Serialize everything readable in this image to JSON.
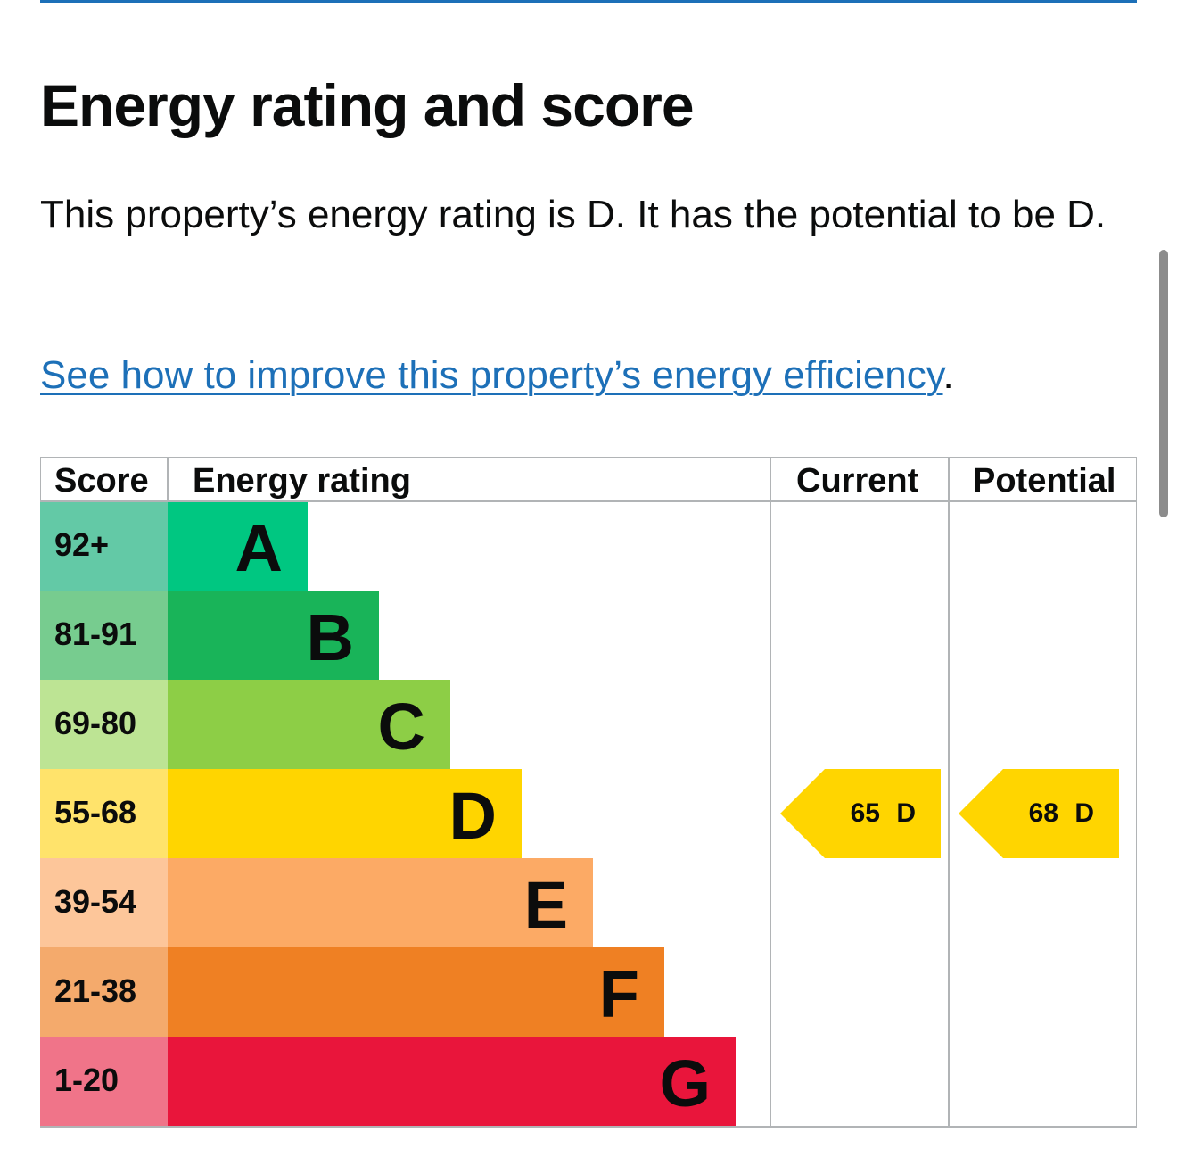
{
  "heading": "Energy rating and score",
  "summary": "This property’s energy rating is D. It has the potential to be D.",
  "improve_link": "See how to improve this property’s energy efficiency",
  "improve_link_suffix": ".",
  "table": {
    "headers": {
      "score": "Score",
      "rating": "Energy rating",
      "current": "Current",
      "potential": "Potential"
    },
    "bands": [
      {
        "score": "92+",
        "letter": "A",
        "bar_color": "#00c781",
        "score_color": "#63c9a6"
      },
      {
        "score": "81-91",
        "letter": "B",
        "bar_color": "#19b459",
        "score_color": "#77cc8f"
      },
      {
        "score": "69-80",
        "letter": "C",
        "bar_color": "#8dce46",
        "score_color": "#bde494"
      },
      {
        "score": "55-68",
        "letter": "D",
        "bar_color": "#ffd500",
        "score_color": "#ffe36b"
      },
      {
        "score": "39-54",
        "letter": "E",
        "bar_color": "#fcaa65",
        "score_color": "#fdc69a"
      },
      {
        "score": "21-38",
        "letter": "F",
        "bar_color": "#ef8023",
        "score_color": "#f4aa6c"
      },
      {
        "score": "1-20",
        "letter": "G",
        "bar_color": "#e9153b",
        "score_color": "#f07489"
      }
    ],
    "current": {
      "score": "65",
      "letter": "D",
      "color": "#ffd500"
    },
    "potential": {
      "score": "68",
      "letter": "D",
      "color": "#ffd500"
    }
  }
}
